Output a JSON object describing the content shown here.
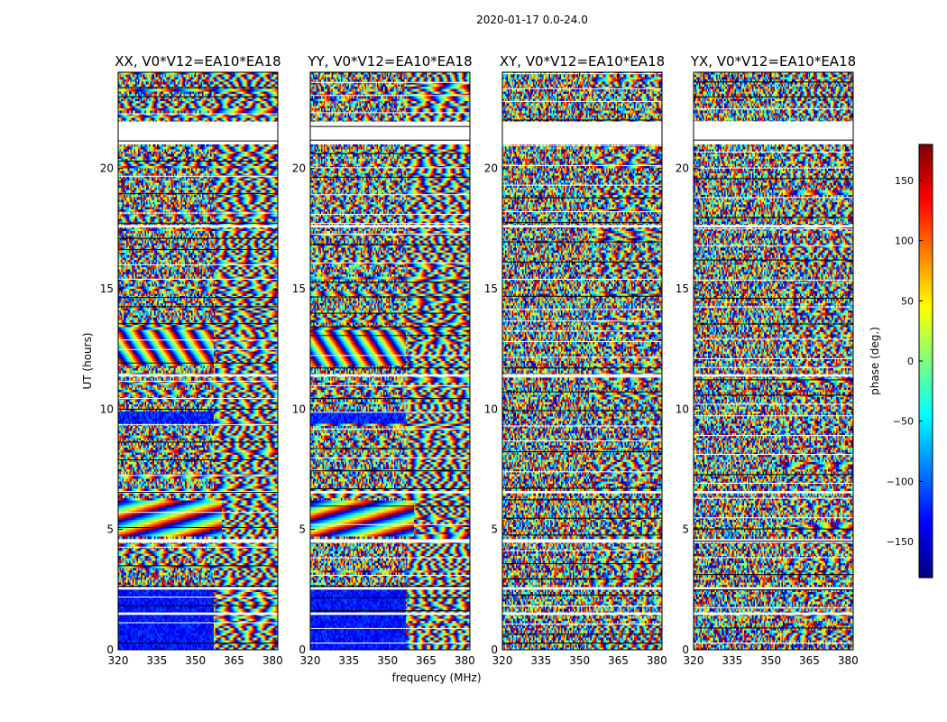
{
  "figure": {
    "suptitle": "2020-01-17 0.0-24.0",
    "xlabel": "frequency (MHz)",
    "ylabel": "UT (hours)",
    "colorbar_label": "phase (deg.)",
    "colormap": "jet"
  },
  "chart_data": {
    "type": "heatmap",
    "panels": [
      {
        "title": "XX, V0*V12=EA10*EA18",
        "pol": "XX",
        "style": "parallel"
      },
      {
        "title": "YY, V0*V12=EA10*EA18",
        "pol": "YY",
        "style": "parallel"
      },
      {
        "title": "XY, V0*V12=EA10*EA18",
        "pol": "XY",
        "style": "cross"
      },
      {
        "title": "YX, V0*V12=EA10*EA18",
        "pol": "YX",
        "style": "cross"
      }
    ],
    "x_ticks": [
      320,
      335,
      350,
      365,
      380
    ],
    "xlim": [
      320,
      382
    ],
    "y_ticks": [
      0,
      5,
      10,
      15,
      20
    ],
    "ylim": [
      0,
      24
    ],
    "colorbar_ticks": [
      150,
      100,
      50,
      0,
      -50,
      -100,
      -150
    ],
    "clim": [
      -180,
      180
    ],
    "data_gaps_hours": [
      [
        21.0,
        21.95
      ],
      [
        4.45,
        4.6
      ],
      [
        1.45,
        1.55
      ],
      [
        2.5,
        2.6
      ],
      [
        6.5,
        6.6
      ],
      [
        11.35,
        11.45
      ],
      [
        17.55,
        17.65
      ]
    ],
    "grid": false
  }
}
